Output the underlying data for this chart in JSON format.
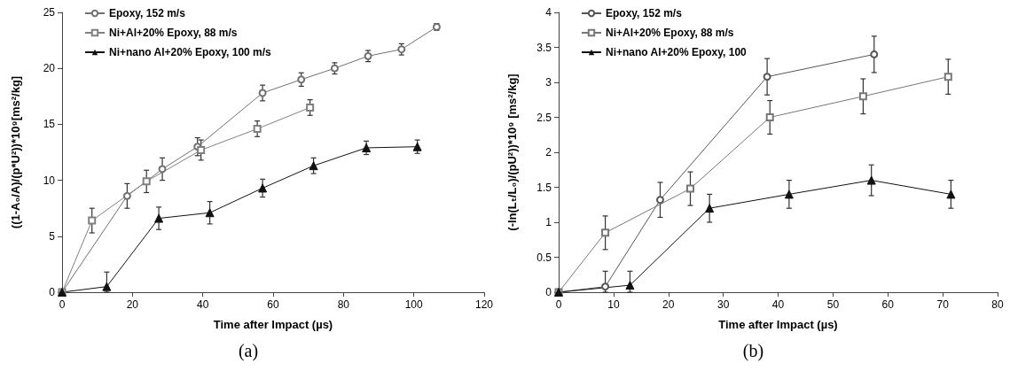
{
  "chart_data": [
    {
      "type": "line",
      "xlabel": "Time after Impact (µs)",
      "ylabel": "((1-A₀/A)/(p*U²))*10⁹[ms²/kg]",
      "xlim": [
        0,
        120
      ],
      "xticks": [
        0,
        20,
        40,
        60,
        80,
        100,
        120
      ],
      "ylim": [
        0,
        25
      ],
      "yticks": [
        0,
        5,
        10,
        15,
        20,
        25
      ],
      "grid": false,
      "legend": "top left",
      "annotations": [
        "(a)"
      ],
      "series": [
        {
          "name": "Epoxy, 152 m/s",
          "color": "#707070",
          "marker": "circle",
          "x": [
            0,
            8.5,
            18.5,
            28.5,
            38.5,
            57,
            68,
            77.5,
            87,
            96.5,
            106.5
          ],
          "values": [
            0,
            null,
            8.6,
            11,
            13,
            17.8,
            19,
            20,
            21.1,
            21.7,
            23.7
          ],
          "errors": [
            null,
            null,
            1.1,
            1,
            0.8,
            0.7,
            0.6,
            0.5,
            0.5,
            0.5,
            0.3
          ]
        },
        {
          "name": "Ni+Al+20% Epoxy, 88 m/s",
          "color": "#808080",
          "marker": "square",
          "x": [
            0,
            8.5,
            24,
            39.5,
            55.5,
            70.5
          ],
          "values": [
            0,
            6.4,
            9.9,
            12.7,
            14.6,
            16.5
          ],
          "errors": [
            null,
            1.1,
            1,
            0.9,
            0.7,
            0.7
          ]
        },
        {
          "name": "Ni+nano Al+20% Epoxy, 100 m/s",
          "color": "#111111",
          "marker": "triangle",
          "x": [
            0,
            12.7,
            27.5,
            42,
            57,
            71.5,
            86.5,
            101
          ],
          "values": [
            0,
            0.5,
            6.6,
            7.1,
            9.3,
            11.3,
            12.9,
            13
          ],
          "errors": [
            null,
            [
              0,
              1.8
            ],
            1,
            1,
            0.8,
            0.7,
            0.6,
            0.6
          ]
        }
      ]
    },
    {
      "type": "line",
      "xlabel": "Time after Impact (µs)",
      "ylabel": "(-ln(Lₜ/L₀)/(pU²))*10⁹ [ms²/kg]",
      "xlim": [
        0,
        80
      ],
      "xticks": [
        0,
        10,
        20,
        30,
        40,
        50,
        60,
        70,
        80
      ],
      "ylim": [
        0,
        4
      ],
      "yticks": [
        0,
        0.5,
        1,
        1.5,
        2,
        2.5,
        3,
        3.5,
        4
      ],
      "grid": false,
      "legend": "top left",
      "annotations": [
        "(b)"
      ],
      "series": [
        {
          "name": "Epoxy, 152 m/s",
          "color": "#555555",
          "marker": "circle",
          "x": [
            0,
            8.5,
            18.5,
            38,
            57.5
          ],
          "values": [
            0,
            0.08,
            1.32,
            3.08,
            3.4
          ],
          "errors": [
            null,
            [
              0,
              0.3
            ],
            0.25,
            0.26,
            0.26
          ]
        },
        {
          "name": "Ni+Al+20% Epoxy, 88 m/s",
          "color": "#777777",
          "marker": "square",
          "x": [
            0,
            8.5,
            24,
            38.5,
            55.5,
            71
          ],
          "values": [
            0,
            0.85,
            1.48,
            2.5,
            2.8,
            3.08
          ],
          "errors": [
            null,
            0.24,
            0.24,
            0.24,
            0.25,
            0.25
          ]
        },
        {
          "name": "Ni+nano Al+20% Epoxy, 100",
          "color": "#111111",
          "marker": "triangle",
          "x": [
            0,
            13,
            27.5,
            42,
            57,
            71.5
          ],
          "values": [
            0,
            0.1,
            1.2,
            1.4,
            1.6,
            1.4
          ],
          "errors": [
            null,
            [
              0,
              0.3
            ],
            0.2,
            0.2,
            0.22,
            0.2
          ]
        }
      ]
    }
  ]
}
